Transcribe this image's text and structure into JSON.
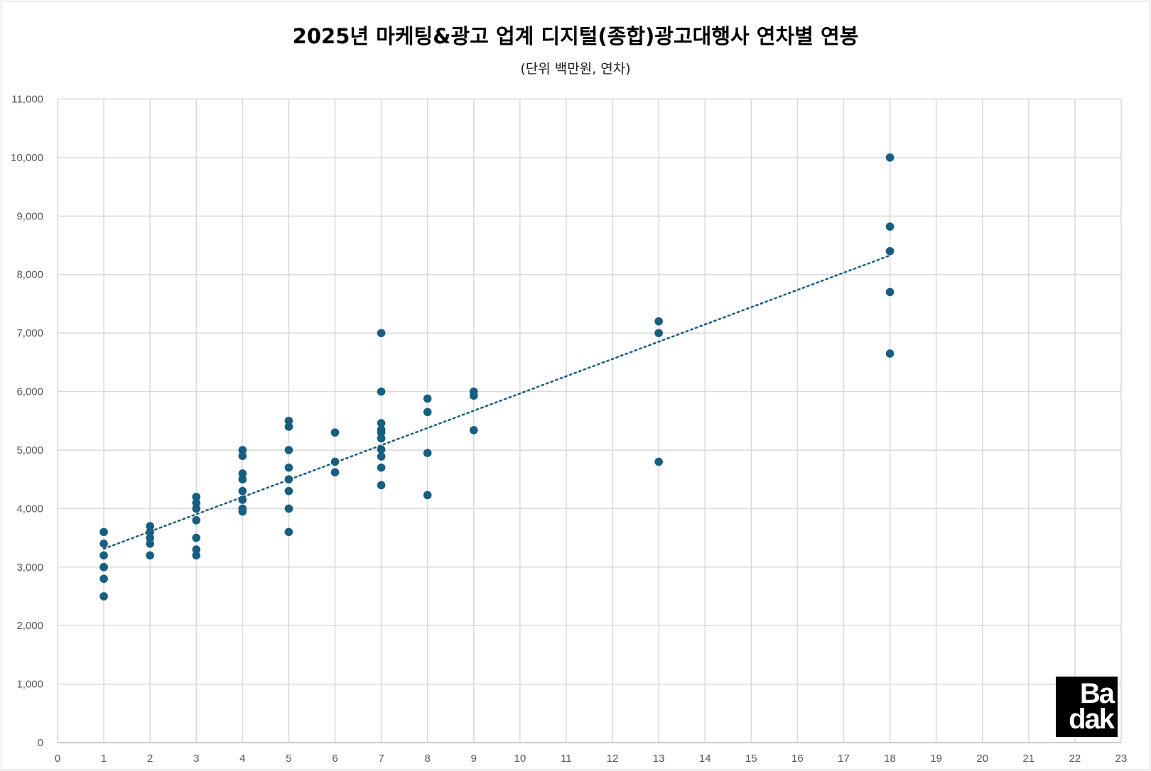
{
  "chart_data": {
    "type": "scatter",
    "title": "2025년 마케팅&광고 업계 디지털(종합)광고대행사 연차별 연봉",
    "subtitle": "(단위 백만원, 연차)",
    "xlim": [
      0,
      23
    ],
    "ylim": [
      0,
      11000
    ],
    "xticks": [
      0,
      1,
      2,
      3,
      4,
      5,
      6,
      7,
      8,
      9,
      10,
      11,
      12,
      13,
      14,
      15,
      16,
      17,
      18,
      19,
      20,
      21,
      22,
      23
    ],
    "yticks": [
      "0",
      "1,000",
      "2,000",
      "3,000",
      "4,000",
      "5,000",
      "6,000",
      "7,000",
      "8,000",
      "9,000",
      "10,000",
      "11,000"
    ],
    "grid": true,
    "trendline": "linear (dotted)",
    "color": "#175e80",
    "points": [
      [
        1,
        3600
      ],
      [
        1,
        3400
      ],
      [
        1,
        3200
      ],
      [
        1,
        3000
      ],
      [
        1,
        3000
      ],
      [
        1,
        2800
      ],
      [
        1,
        2500
      ],
      [
        2,
        3700
      ],
      [
        2,
        3600
      ],
      [
        2,
        3500
      ],
      [
        2,
        3400
      ],
      [
        2,
        3200
      ],
      [
        3,
        4200
      ],
      [
        3,
        4100
      ],
      [
        3,
        4000
      ],
      [
        3,
        3800
      ],
      [
        3,
        3500
      ],
      [
        3,
        3300
      ],
      [
        3,
        3200
      ],
      [
        4,
        5000
      ],
      [
        4,
        4900
      ],
      [
        4,
        4600
      ],
      [
        4,
        4500
      ],
      [
        4,
        4300
      ],
      [
        4,
        4150
      ],
      [
        4,
        4000
      ],
      [
        4,
        3950
      ],
      [
        5,
        5500
      ],
      [
        5,
        5400
      ],
      [
        5,
        5000
      ],
      [
        5,
        4700
      ],
      [
        5,
        4500
      ],
      [
        5,
        4300
      ],
      [
        5,
        4000
      ],
      [
        5,
        3600
      ],
      [
        6,
        5300
      ],
      [
        6,
        4800
      ],
      [
        6,
        4620
      ],
      [
        7,
        7000
      ],
      [
        7,
        6000
      ],
      [
        7,
        5460
      ],
      [
        7,
        5350
      ],
      [
        7,
        5300
      ],
      [
        7,
        5200
      ],
      [
        7,
        5010
      ],
      [
        7,
        4890
      ],
      [
        7,
        4700
      ],
      [
        7,
        4400
      ],
      [
        8,
        5880
      ],
      [
        8,
        5650
      ],
      [
        8,
        4950
      ],
      [
        8,
        4230
      ],
      [
        9,
        6000
      ],
      [
        9,
        5930
      ],
      [
        9,
        5340
      ],
      [
        13,
        7200
      ],
      [
        13,
        7000
      ],
      [
        13,
        4800
      ],
      [
        18,
        10000
      ],
      [
        18,
        8820
      ],
      [
        18,
        8400
      ],
      [
        18,
        7700
      ],
      [
        18,
        6650
      ]
    ]
  },
  "logo": {
    "text": "Badak",
    "line1": "Ba",
    "line2": "dak"
  }
}
